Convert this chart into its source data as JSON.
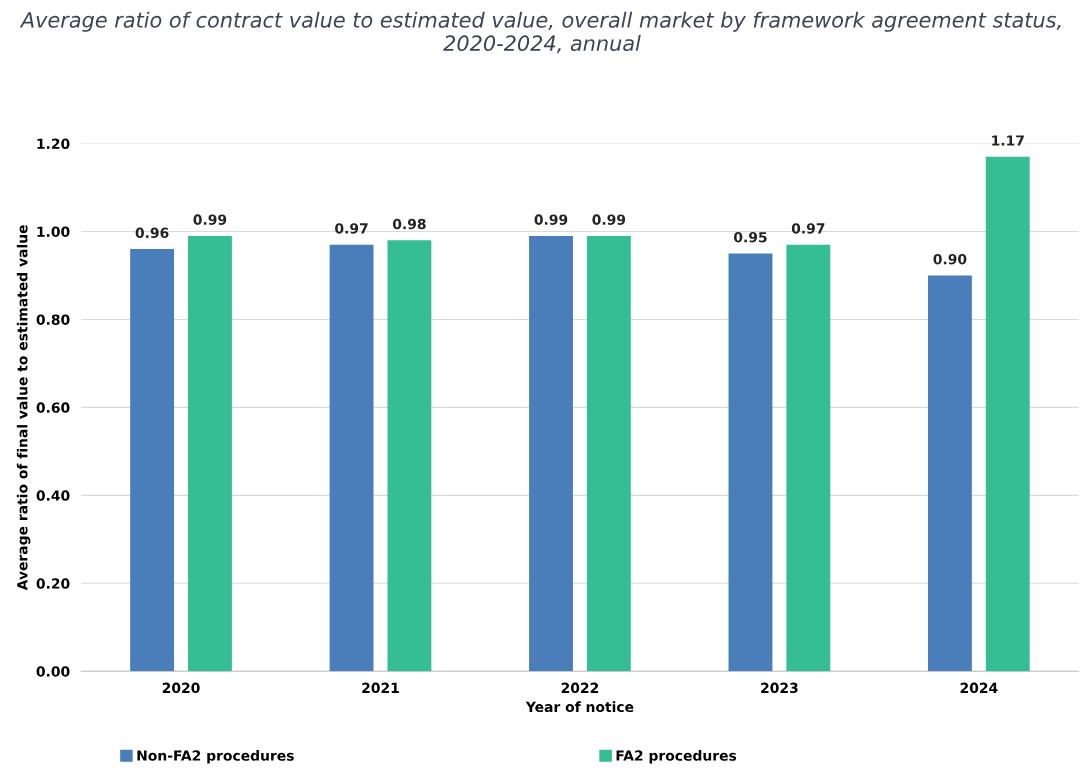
{
  "chart_data": {
    "type": "bar",
    "title": "Average ratio of contract value to estimated value, overall market by framework agreement status, 2020-2024, annual",
    "xlabel": "Year of notice",
    "ylabel": "Average ratio of final value to estimated value",
    "categories": [
      "2020",
      "2021",
      "2022",
      "2023",
      "2024"
    ],
    "series": [
      {
        "name": "Non-FA2 procedures",
        "color": "#4a7ebb",
        "values": [
          0.96,
          0.97,
          0.99,
          0.95,
          0.9
        ],
        "value_labels": [
          "0.96",
          "0.97",
          "0.99",
          "0.95",
          "0.90"
        ]
      },
      {
        "name": "FA2 procedures",
        "color": "#35bd94",
        "values": [
          0.99,
          0.98,
          0.99,
          0.97,
          1.17
        ],
        "value_labels": [
          "0.99",
          "0.98",
          "0.99",
          "0.97",
          "1.17"
        ]
      }
    ],
    "ylim": [
      0,
      1.2
    ],
    "yticks": [
      {
        "value": 0,
        "label": "0.00"
      },
      {
        "value": 0.2,
        "label": "0.20"
      },
      {
        "value": 0.4,
        "label": "0.40"
      },
      {
        "value": 0.6,
        "label": "0.60"
      },
      {
        "value": 0.8,
        "label": "0.80"
      },
      {
        "value": 1.0,
        "label": "1.00"
      },
      {
        "value": 1.2,
        "label": "1.20"
      }
    ],
    "grid": "y",
    "legend": "bottom"
  }
}
